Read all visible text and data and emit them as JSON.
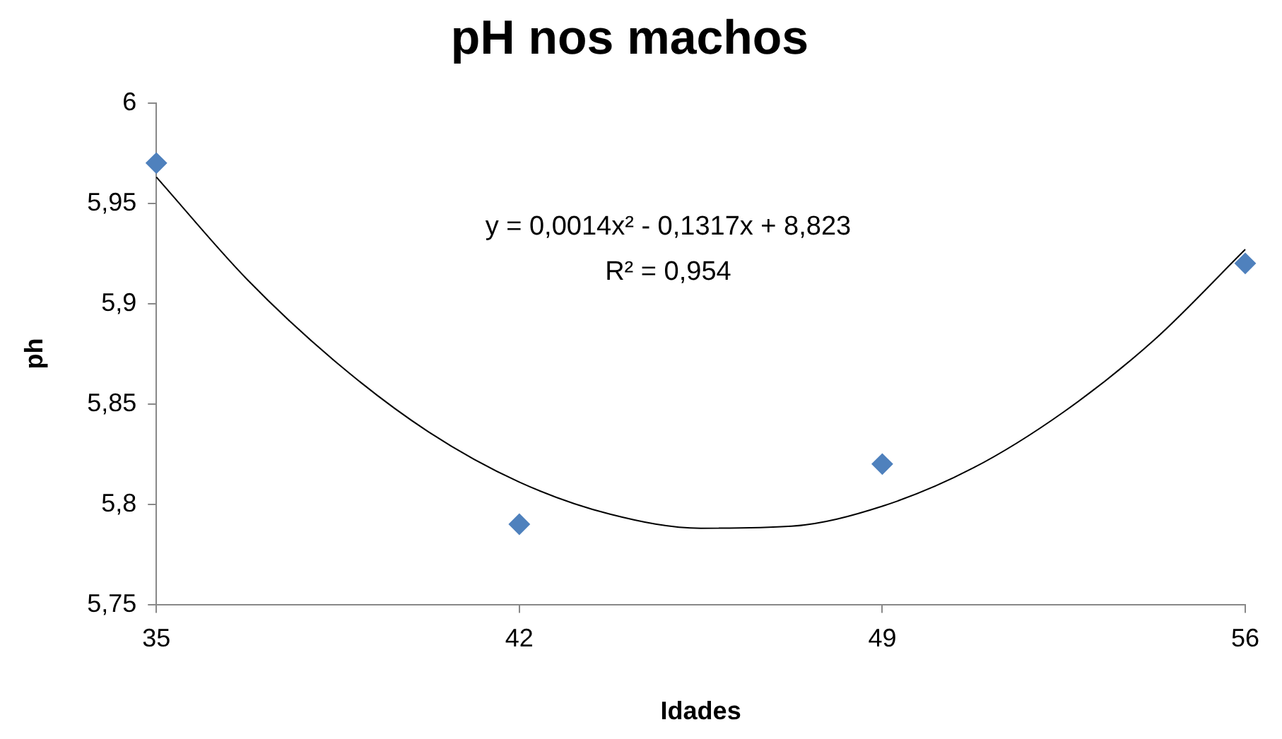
{
  "chart_data": {
    "type": "scatter",
    "title": "pH nos machos",
    "xlabel": "Idades",
    "ylabel": "ph",
    "annotations": [
      "y = 0,0014x² - 0,1317x + 8,823",
      "R² = 0,954"
    ],
    "series": [
      {
        "type": "scatter",
        "color": "#4f81bd",
        "marker": "diamond",
        "x": [
          35,
          42,
          49,
          56
        ],
        "values": [
          5.97,
          5.79,
          5.82,
          5.92
        ]
      },
      {
        "type": "line",
        "color": "#000000",
        "marker": "none",
        "x": [
          35,
          36.75,
          38.5,
          40.25,
          42,
          43.75,
          45.5,
          47.25,
          49,
          50.75,
          52.5,
          54.25,
          56
        ],
        "values": [
          5.963,
          5.912,
          5.87,
          5.836,
          5.811,
          5.795,
          5.788,
          5.789,
          5.799,
          5.818,
          5.846,
          5.882,
          5.927
        ]
      }
    ],
    "xlim": [
      35,
      56
    ],
    "xticks": [
      35,
      42,
      49,
      56
    ],
    "ylim": [
      5.75,
      6
    ],
    "yticks": [
      {
        "value": 5.75,
        "label": "5,75"
      },
      {
        "value": 5.8,
        "label": "5,8"
      },
      {
        "value": 5.85,
        "label": "5,85"
      },
      {
        "value": 5.9,
        "label": "5,9"
      },
      {
        "value": 5.95,
        "label": "5,95"
      },
      {
        "value": 6,
        "label": "6"
      }
    ]
  }
}
